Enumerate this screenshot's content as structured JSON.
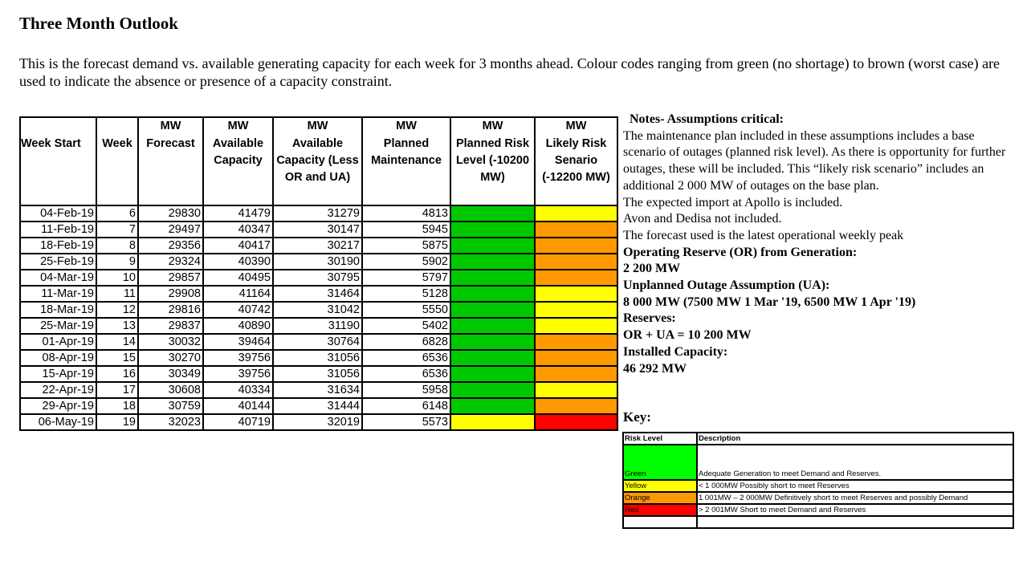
{
  "title": "Three Month Outlook",
  "intro": "This is the forecast demand vs. available generating capacity for each week for 3 months ahead.  Colour codes ranging from green (no shortage) to brown (worst case) are used to indicate the absence or presence of a capacity constraint.",
  "colors": {
    "green": "#00c800",
    "yellow": "#ffff00",
    "orange": "#ff9900",
    "red": "#ff0000",
    "key_green": "#00ff00"
  },
  "table": {
    "units": [
      "",
      "",
      "MW",
      "MW",
      "MW",
      "MW",
      "MW",
      "MW"
    ],
    "headers": [
      "Week Start",
      "Week",
      "Forecast",
      "Available Capacity",
      "Available Capacity (Less OR and UA)",
      "Planned Maintenance",
      "Planned Risk Level (-10200 MW)",
      "Likely Risk Senario (-12200 MW)"
    ],
    "rows": [
      {
        "week_start": "04-Feb-19",
        "week": "6",
        "forecast": "29830",
        "available": "41479",
        "available_less": "31279",
        "maintenance": "4813",
        "planned_risk": "green",
        "likely_risk": "yellow"
      },
      {
        "week_start": "11-Feb-19",
        "week": "7",
        "forecast": "29497",
        "available": "40347",
        "available_less": "30147",
        "maintenance": "5945",
        "planned_risk": "green",
        "likely_risk": "orange"
      },
      {
        "week_start": "18-Feb-19",
        "week": "8",
        "forecast": "29356",
        "available": "40417",
        "available_less": "30217",
        "maintenance": "5875",
        "planned_risk": "green",
        "likely_risk": "orange"
      },
      {
        "week_start": "25-Feb-19",
        "week": "9",
        "forecast": "29324",
        "available": "40390",
        "available_less": "30190",
        "maintenance": "5902",
        "planned_risk": "green",
        "likely_risk": "orange"
      },
      {
        "week_start": "04-Mar-19",
        "week": "10",
        "forecast": "29857",
        "available": "40495",
        "available_less": "30795",
        "maintenance": "5797",
        "planned_risk": "green",
        "likely_risk": "orange"
      },
      {
        "week_start": "11-Mar-19",
        "week": "11",
        "forecast": "29908",
        "available": "41164",
        "available_less": "31464",
        "maintenance": "5128",
        "planned_risk": "green",
        "likely_risk": "yellow"
      },
      {
        "week_start": "18-Mar-19",
        "week": "12",
        "forecast": "29816",
        "available": "40742",
        "available_less": "31042",
        "maintenance": "5550",
        "planned_risk": "green",
        "likely_risk": "yellow"
      },
      {
        "week_start": "25-Mar-19",
        "week": "13",
        "forecast": "29837",
        "available": "40890",
        "available_less": "31190",
        "maintenance": "5402",
        "planned_risk": "green",
        "likely_risk": "yellow"
      },
      {
        "week_start": "01-Apr-19",
        "week": "14",
        "forecast": "30032",
        "available": "39464",
        "available_less": "30764",
        "maintenance": "6828",
        "planned_risk": "green",
        "likely_risk": "orange"
      },
      {
        "week_start": "08-Apr-19",
        "week": "15",
        "forecast": "30270",
        "available": "39756",
        "available_less": "31056",
        "maintenance": "6536",
        "planned_risk": "green",
        "likely_risk": "orange"
      },
      {
        "week_start": "15-Apr-19",
        "week": "16",
        "forecast": "30349",
        "available": "39756",
        "available_less": "31056",
        "maintenance": "6536",
        "planned_risk": "green",
        "likely_risk": "orange"
      },
      {
        "week_start": "22-Apr-19",
        "week": "17",
        "forecast": "30608",
        "available": "40334",
        "available_less": "31634",
        "maintenance": "5958",
        "planned_risk": "green",
        "likely_risk": "yellow"
      },
      {
        "week_start": "29-Apr-19",
        "week": "18",
        "forecast": "30759",
        "available": "40144",
        "available_less": "31444",
        "maintenance": "6148",
        "planned_risk": "green",
        "likely_risk": "orange"
      },
      {
        "week_start": "06-May-19",
        "week": "19",
        "forecast": "32023",
        "available": "40719",
        "available_less": "32019",
        "maintenance": "5573",
        "planned_risk": "yellow",
        "likely_risk": "red"
      }
    ]
  },
  "notes": {
    "heading": "Notes- Assumptions critical:",
    "p1": "The maintenance plan included in these assumptions includes a base scenario of outages (planned risk level). As there is opportunity for further outages, these will be included. This “likely risk scenario” includes an additional 2 000 MW of outages on the base plan.",
    "p2": "The expected import at Apollo is included.",
    "p3": "Avon and Dedisa not included.",
    "p4": "The forecast used is the latest operational weekly peak",
    "or_label": "Operating Reserve (OR) from Generation:",
    "or_value": "2 200 MW",
    "ua_label": "Unplanned Outage Assumption (UA):",
    "ua_value": "8 000 MW (7500 MW 1 Mar '19, 6500 MW 1 Apr '19)",
    "res_label": "Reserves:",
    "res_value": "OR + UA = 10 200 MW",
    "inst_label": "Installed Capacity:",
    "inst_value": "46 292 MW"
  },
  "key": {
    "label": "Key:",
    "headers": [
      "Risk Level",
      "Description"
    ],
    "rows": [
      {
        "level": "Green",
        "color": "key_green",
        "description": "Adequate Generation to meet Demand and Reserves."
      },
      {
        "level": "Yellow",
        "color": "yellow",
        "description": "< 1 000MW Possibly short to meet Reserves"
      },
      {
        "level": "Orange",
        "color": "orange",
        "description": "1 001MW – 2 000MW Definitively short to meet Reserves and possibly Demand"
      },
      {
        "level": "Red",
        "color": "red",
        "description": "> 2 001MW Short to meet Demand and Reserves"
      }
    ]
  }
}
